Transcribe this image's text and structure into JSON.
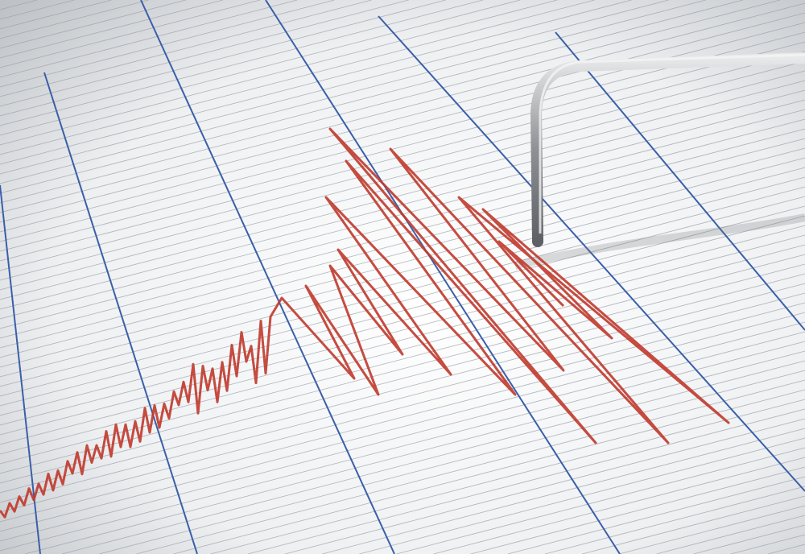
{
  "scene": {
    "subject": "seismograph",
    "colors": {
      "paper": "#f4f5f7",
      "grid_line": "#9aa0a8",
      "blue_line": "#3a5fa8",
      "trace": "#c0392b",
      "needle": "#a9acb0"
    }
  }
}
